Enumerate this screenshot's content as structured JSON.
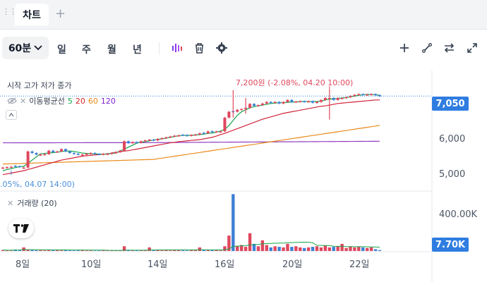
{
  "tabbar": {
    "tab_label": "차트",
    "add_label": "+"
  },
  "toolbar": {
    "interval": "60분",
    "periods": [
      "일",
      "주",
      "월",
      "년"
    ],
    "icons": [
      "indicator-icon",
      "trash-icon",
      "gear-icon",
      "plus-icon",
      "draw-line-icon",
      "compare-icon",
      "fullscreen-icon"
    ]
  },
  "legend": {
    "ohlc": "시작 고가 저가 종가",
    "ma_name": "이동평균선",
    "ma5": "5",
    "ma20": "20",
    "ma60": "60",
    "ma120": "120",
    "volume": "거래량 (20)"
  },
  "annotations": {
    "high": "7,200원 (-2.08%, 04.20 10:00)",
    "low": ".05%, 04.07 14:00)"
  },
  "price_axis": {
    "current": "7,050",
    "ticks": [
      "6,000",
      "5,000"
    ]
  },
  "volume_axis": {
    "tick": "400.00K",
    "current": "7.70K"
  },
  "x_axis": {
    "ticks": [
      "8일",
      "10일",
      "14일",
      "16일",
      "20일",
      "22일"
    ]
  },
  "colors": {
    "up": "#e0475e",
    "down": "#3d7fd6",
    "ma5": "#16a34a",
    "ma20": "#d0243a",
    "ma60": "#ea8a1a",
    "ma120": "#8e3bbf",
    "accent": "#2f7de1"
  },
  "chart_data": {
    "type": "candlestick",
    "ylim": [
      4650,
      7700
    ],
    "volume_ylim": [
      0,
      500000
    ],
    "candles_close": [
      5230,
      5240,
      5250,
      5260,
      5250,
      5230,
      5640,
      5600,
      5560,
      5560,
      5570,
      5660,
      5620,
      5640,
      5700,
      5640,
      5600,
      5580,
      5560,
      5560,
      5580,
      5600,
      5580,
      5560,
      5580,
      5580,
      5600,
      5620,
      5660,
      5900,
      5850,
      5880,
      5860,
      5900,
      5920,
      5940,
      5920,
      5960,
      5980,
      6000,
      6020,
      6040,
      6050,
      6050,
      6040,
      6060,
      6070,
      6100,
      6100,
      6150,
      6140,
      6150,
      6150,
      6500,
      6650,
      6650,
      6700,
      6720,
      6750,
      6850,
      6800,
      6820,
      6860,
      6900,
      6880,
      6900,
      6860,
      6900,
      6950,
      6900,
      6910,
      6920,
      6900,
      6920,
      6880,
      6900,
      6950,
      7000,
      7000,
      6950,
      7000,
      7000,
      7020,
      7050,
      7080,
      7100,
      7080,
      7090,
      7100,
      7070,
      7050
    ],
    "candles_dir": [
      1,
      1,
      1,
      0,
      0,
      1,
      1,
      0,
      0,
      1,
      1,
      1,
      0,
      1,
      1,
      0,
      0,
      0,
      0,
      1,
      1,
      1,
      0,
      0,
      1,
      1,
      1,
      1,
      1,
      1,
      0,
      1,
      0,
      1,
      1,
      1,
      0,
      1,
      1,
      1,
      1,
      1,
      1,
      0,
      0,
      1,
      1,
      1,
      0,
      1,
      0,
      1,
      1,
      1,
      1,
      0,
      1,
      1,
      1,
      1,
      0,
      1,
      1,
      1,
      0,
      1,
      0,
      1,
      1,
      0,
      1,
      1,
      0,
      1,
      0,
      1,
      1,
      1,
      1,
      0,
      1,
      1,
      1,
      1,
      1,
      1,
      0,
      1,
      1,
      0,
      0
    ],
    "volume": [
      8000,
      6000,
      5000,
      12000,
      9000,
      30000,
      10000,
      8000,
      6000,
      7000,
      5000,
      9000,
      6000,
      8000,
      5000,
      6000,
      5000,
      4000,
      5000,
      6000,
      4000,
      5000,
      3000,
      4000,
      6000,
      4000,
      5000,
      5000,
      6000,
      40000,
      7000,
      6000,
      5000,
      8000,
      6000,
      30000,
      9000,
      8000,
      5000,
      6000,
      5000,
      8000,
      6000,
      5000,
      4000,
      7000,
      6000,
      30000,
      9000,
      8000,
      6000,
      7000,
      5000,
      40000,
      130000,
      480000,
      40000,
      50000,
      35000,
      150000,
      60000,
      40000,
      90000,
      50000,
      30000,
      40000,
      35000,
      30000,
      60000,
      35000,
      40000,
      30000,
      25000,
      30000,
      35000,
      40000,
      30000,
      45000,
      30000,
      35000,
      40000,
      60000,
      25000,
      40000,
      30000,
      35000,
      30000,
      25000,
      30000,
      15000,
      7700
    ],
    "ma5": [
      5150,
      5180,
      5200,
      5230,
      5250,
      5260,
      5340,
      5420,
      5500,
      5580,
      5590,
      5600,
      5610,
      5620,
      5640,
      5650,
      5650,
      5640,
      5620,
      5600,
      5590,
      5580,
      5580,
      5570,
      5570,
      5580,
      5590,
      5600,
      5650,
      5700,
      5750,
      5800,
      5850,
      5880,
      5890,
      5910,
      5930,
      5950,
      5960,
      5980,
      6000,
      6020,
      6040,
      6050,
      6050,
      6050,
      6060,
      6070,
      6080,
      6100,
      6110,
      6130,
      6160,
      6200,
      6300,
      6430,
      6560,
      6650,
      6700,
      6750,
      6780,
      6800,
      6820,
      6840,
      6860,
      6870,
      6880,
      6880,
      6890,
      6900,
      6900,
      6910,
      6910,
      6910,
      6910,
      6910,
      6920,
      6950,
      6970,
      6980,
      6990,
      7000,
      7010,
      7030,
      7050,
      7070,
      7080,
      7090,
      7090,
      7080,
      7070
    ],
    "ma20": [
      5050,
      5070,
      5090,
      5110,
      5130,
      5150,
      5180,
      5210,
      5240,
      5270,
      5300,
      5330,
      5360,
      5390,
      5420,
      5440,
      5460,
      5480,
      5500,
      5520,
      5530,
      5540,
      5550,
      5560,
      5570,
      5580,
      5600,
      5620,
      5630,
      5650,
      5660,
      5680,
      5700,
      5720,
      5740,
      5760,
      5780,
      5800,
      5820,
      5840,
      5860,
      5870,
      5890,
      5900,
      5910,
      5920,
      5930,
      5940,
      5960,
      5980,
      6000,
      6030,
      6070,
      6100,
      6140,
      6180,
      6220,
      6260,
      6300,
      6340,
      6380,
      6420,
      6460,
      6490,
      6520,
      6550,
      6580,
      6610,
      6630,
      6650,
      6670,
      6690,
      6710,
      6730,
      6750,
      6770,
      6790,
      6800,
      6820,
      6840,
      6860,
      6870,
      6880,
      6890,
      6900,
      6910,
      6920,
      6930,
      6940,
      6950,
      6950
    ],
    "ma60_range": [
      5320,
      6300
    ],
    "ma120_range": [
      5860,
      5900
    ]
  }
}
